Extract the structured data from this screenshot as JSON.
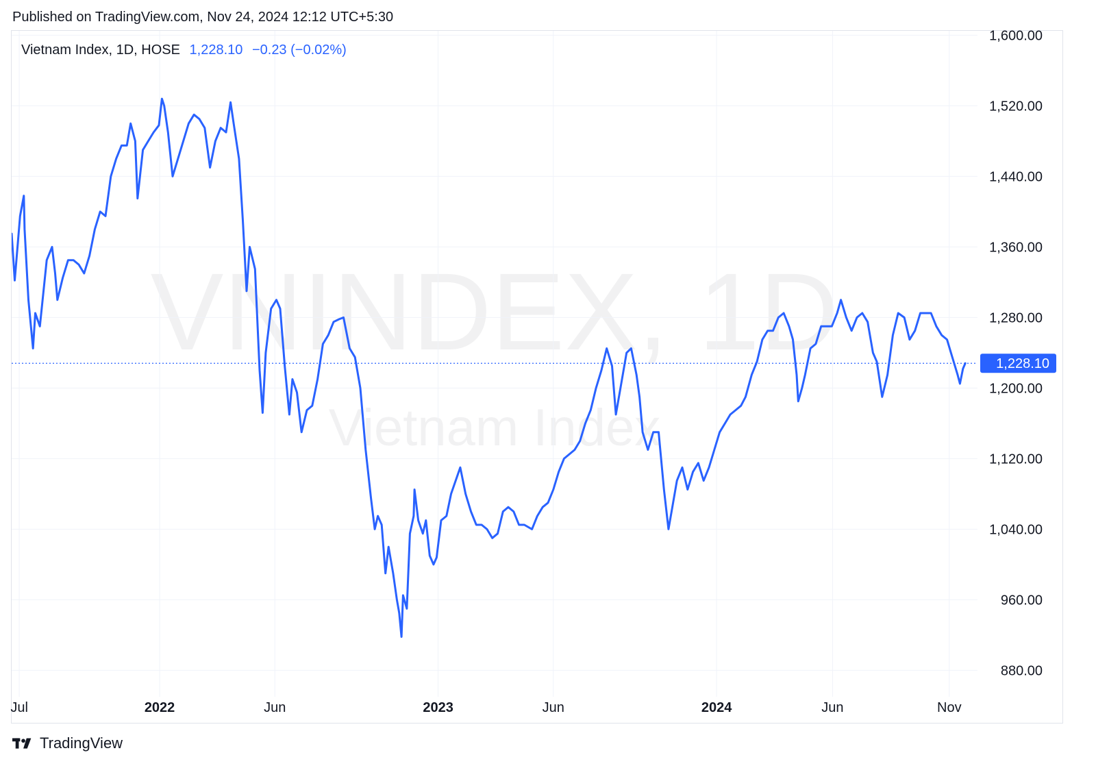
{
  "header": {
    "published_text": "Published on TradingView.com, Nov 24, 2024 12:12 UTC+5:30"
  },
  "legend": {
    "symbol_text": "Vietnam Index, 1D, HOSE",
    "last_value": "1,228.10",
    "change": "−0.23 (−0.02%)",
    "color": "#2962ff"
  },
  "watermark": {
    "line1": "VNINDEX, 1D",
    "line2": "Vietnam Index"
  },
  "footer": {
    "brand": "TradingView",
    "logo_icon": "tradingview-logo-icon"
  },
  "chart_data": {
    "type": "line",
    "series": [
      {
        "color": "#2962ff",
        "points": [
          [
            "2021-06-21",
            1375
          ],
          [
            "2021-06-25",
            1322
          ],
          [
            "2021-07-02",
            1395
          ],
          [
            "2021-07-07",
            1418
          ],
          [
            "2021-07-08",
            1380
          ],
          [
            "2021-07-13",
            1300
          ],
          [
            "2021-07-19",
            1245
          ],
          [
            "2021-07-22",
            1285
          ],
          [
            "2021-07-28",
            1270
          ],
          [
            "2021-08-06",
            1345
          ],
          [
            "2021-08-13",
            1360
          ],
          [
            "2021-08-17",
            1330
          ],
          [
            "2021-08-20",
            1300
          ],
          [
            "2021-08-27",
            1325
          ],
          [
            "2021-09-03",
            1345
          ],
          [
            "2021-09-10",
            1345
          ],
          [
            "2021-09-17",
            1340
          ],
          [
            "2021-09-24",
            1330
          ],
          [
            "2021-10-01",
            1350
          ],
          [
            "2021-10-08",
            1380
          ],
          [
            "2021-10-15",
            1400
          ],
          [
            "2021-10-22",
            1395
          ],
          [
            "2021-10-29",
            1440
          ],
          [
            "2021-11-05",
            1460
          ],
          [
            "2021-11-12",
            1475
          ],
          [
            "2021-11-19",
            1475
          ],
          [
            "2021-11-24",
            1500
          ],
          [
            "2021-11-30",
            1480
          ],
          [
            "2021-12-03",
            1415
          ],
          [
            "2021-12-10",
            1470
          ],
          [
            "2021-12-17",
            1480
          ],
          [
            "2021-12-24",
            1490
          ],
          [
            "2021-12-31",
            1498
          ],
          [
            "2022-01-04",
            1528
          ],
          [
            "2022-01-07",
            1520
          ],
          [
            "2022-01-12",
            1490
          ],
          [
            "2022-01-18",
            1440
          ],
          [
            "2022-01-25",
            1460
          ],
          [
            "2022-02-08",
            1500
          ],
          [
            "2022-02-15",
            1510
          ],
          [
            "2022-02-22",
            1505
          ],
          [
            "2022-03-01",
            1495
          ],
          [
            "2022-03-08",
            1450
          ],
          [
            "2022-03-15",
            1480
          ],
          [
            "2022-03-22",
            1495
          ],
          [
            "2022-03-29",
            1490
          ],
          [
            "2022-04-04",
            1524
          ],
          [
            "2022-04-08",
            1500
          ],
          [
            "2022-04-15",
            1460
          ],
          [
            "2022-04-20",
            1390
          ],
          [
            "2022-04-25",
            1310
          ],
          [
            "2022-04-29",
            1360
          ],
          [
            "2022-05-06",
            1335
          ],
          [
            "2022-05-12",
            1220
          ],
          [
            "2022-05-16",
            1172
          ],
          [
            "2022-05-20",
            1240
          ],
          [
            "2022-05-27",
            1290
          ],
          [
            "2022-06-03",
            1300
          ],
          [
            "2022-06-08",
            1290
          ],
          [
            "2022-06-14",
            1225
          ],
          [
            "2022-06-20",
            1170
          ],
          [
            "2022-06-24",
            1210
          ],
          [
            "2022-06-30",
            1195
          ],
          [
            "2022-07-06",
            1150
          ],
          [
            "2022-07-13",
            1175
          ],
          [
            "2022-07-20",
            1180
          ],
          [
            "2022-07-27",
            1210
          ],
          [
            "2022-08-03",
            1250
          ],
          [
            "2022-08-10",
            1260
          ],
          [
            "2022-08-17",
            1275
          ],
          [
            "2022-08-24",
            1278
          ],
          [
            "2022-08-30",
            1280
          ],
          [
            "2022-09-07",
            1245
          ],
          [
            "2022-09-14",
            1235
          ],
          [
            "2022-09-21",
            1200
          ],
          [
            "2022-09-28",
            1130
          ],
          [
            "2022-10-05",
            1075
          ],
          [
            "2022-10-10",
            1040
          ],
          [
            "2022-10-14",
            1055
          ],
          [
            "2022-10-19",
            1045
          ],
          [
            "2022-10-24",
            990
          ],
          [
            "2022-10-28",
            1020
          ],
          [
            "2022-11-03",
            990
          ],
          [
            "2022-11-08",
            960
          ],
          [
            "2022-11-11",
            945
          ],
          [
            "2022-11-14",
            918
          ],
          [
            "2022-11-16",
            965
          ],
          [
            "2022-11-21",
            950
          ],
          [
            "2022-11-25",
            1035
          ],
          [
            "2022-11-30",
            1055
          ],
          [
            "2022-12-01",
            1085
          ],
          [
            "2022-12-06",
            1050
          ],
          [
            "2022-12-12",
            1035
          ],
          [
            "2022-12-16",
            1050
          ],
          [
            "2022-12-21",
            1010
          ],
          [
            "2022-12-26",
            1000
          ],
          [
            "2022-12-30",
            1008
          ],
          [
            "2023-01-05",
            1050
          ],
          [
            "2023-01-12",
            1055
          ],
          [
            "2023-01-18",
            1080
          ],
          [
            "2023-01-30",
            1110
          ],
          [
            "2023-02-06",
            1080
          ],
          [
            "2023-02-13",
            1060
          ],
          [
            "2023-02-20",
            1045
          ],
          [
            "2023-02-27",
            1045
          ],
          [
            "2023-03-06",
            1040
          ],
          [
            "2023-03-13",
            1030
          ],
          [
            "2023-03-20",
            1035
          ],
          [
            "2023-03-27",
            1060
          ],
          [
            "2023-04-03",
            1065
          ],
          [
            "2023-04-10",
            1060
          ],
          [
            "2023-04-17",
            1045
          ],
          [
            "2023-04-24",
            1045
          ],
          [
            "2023-05-04",
            1040
          ],
          [
            "2023-05-11",
            1055
          ],
          [
            "2023-05-18",
            1065
          ],
          [
            "2023-05-25",
            1070
          ],
          [
            "2023-06-01",
            1085
          ],
          [
            "2023-06-08",
            1105
          ],
          [
            "2023-06-15",
            1120
          ],
          [
            "2023-06-22",
            1125
          ],
          [
            "2023-06-29",
            1130
          ],
          [
            "2023-07-06",
            1140
          ],
          [
            "2023-07-13",
            1160
          ],
          [
            "2023-07-20",
            1175
          ],
          [
            "2023-07-27",
            1200
          ],
          [
            "2023-08-03",
            1220
          ],
          [
            "2023-08-10",
            1245
          ],
          [
            "2023-08-17",
            1225
          ],
          [
            "2023-08-22",
            1170
          ],
          [
            "2023-08-28",
            1200
          ],
          [
            "2023-09-05",
            1240
          ],
          [
            "2023-09-11",
            1245
          ],
          [
            "2023-09-18",
            1215
          ],
          [
            "2023-09-22",
            1190
          ],
          [
            "2023-09-26",
            1150
          ],
          [
            "2023-10-03",
            1130
          ],
          [
            "2023-10-10",
            1150
          ],
          [
            "2023-10-17",
            1150
          ],
          [
            "2023-10-24",
            1085
          ],
          [
            "2023-10-30",
            1040
          ],
          [
            "2023-11-03",
            1060
          ],
          [
            "2023-11-10",
            1095
          ],
          [
            "2023-11-17",
            1110
          ],
          [
            "2023-11-24",
            1085
          ],
          [
            "2023-12-01",
            1105
          ],
          [
            "2023-12-08",
            1115
          ],
          [
            "2023-12-15",
            1095
          ],
          [
            "2023-12-22",
            1110
          ],
          [
            "2023-12-29",
            1130
          ],
          [
            "2024-01-05",
            1150
          ],
          [
            "2024-01-12",
            1160
          ],
          [
            "2024-01-19",
            1170
          ],
          [
            "2024-01-26",
            1175
          ],
          [
            "2024-02-02",
            1180
          ],
          [
            "2024-02-08",
            1190
          ],
          [
            "2024-02-16",
            1215
          ],
          [
            "2024-02-23",
            1230
          ],
          [
            "2024-03-01",
            1255
          ],
          [
            "2024-03-08",
            1265
          ],
          [
            "2024-03-15",
            1265
          ],
          [
            "2024-03-22",
            1280
          ],
          [
            "2024-03-29",
            1285
          ],
          [
            "2024-04-05",
            1270
          ],
          [
            "2024-04-10",
            1255
          ],
          [
            "2024-04-15",
            1215
          ],
          [
            "2024-04-17",
            1185
          ],
          [
            "2024-04-22",
            1200
          ],
          [
            "2024-04-26",
            1215
          ],
          [
            "2024-05-03",
            1245
          ],
          [
            "2024-05-10",
            1250
          ],
          [
            "2024-05-17",
            1270
          ],
          [
            "2024-05-24",
            1270
          ],
          [
            "2024-05-31",
            1270
          ],
          [
            "2024-06-07",
            1285
          ],
          [
            "2024-06-12",
            1300
          ],
          [
            "2024-06-19",
            1280
          ],
          [
            "2024-06-26",
            1265
          ],
          [
            "2024-07-03",
            1280
          ],
          [
            "2024-07-10",
            1285
          ],
          [
            "2024-07-17",
            1275
          ],
          [
            "2024-07-24",
            1240
          ],
          [
            "2024-07-29",
            1230
          ],
          [
            "2024-08-05",
            1190
          ],
          [
            "2024-08-12",
            1215
          ],
          [
            "2024-08-19",
            1260
          ],
          [
            "2024-08-26",
            1285
          ],
          [
            "2024-09-03",
            1280
          ],
          [
            "2024-09-10",
            1255
          ],
          [
            "2024-09-17",
            1265
          ],
          [
            "2024-09-24",
            1285
          ],
          [
            "2024-10-01",
            1285
          ],
          [
            "2024-10-08",
            1285
          ],
          [
            "2024-10-15",
            1270
          ],
          [
            "2024-10-22",
            1260
          ],
          [
            "2024-10-29",
            1255
          ],
          [
            "2024-11-05",
            1235
          ],
          [
            "2024-11-12",
            1215
          ],
          [
            "2024-11-15",
            1205
          ],
          [
            "2024-11-19",
            1222
          ],
          [
            "2024-11-22",
            1228.1
          ]
        ]
      }
    ],
    "x_range": [
      "2021-06-21",
      "2024-12-08"
    ],
    "y_range": [
      850,
      1605
    ],
    "x_ticks": [
      {
        "date": "2021-07-01",
        "label": "Jul",
        "bold": false
      },
      {
        "date": "2022-01-01",
        "label": "2022",
        "bold": true
      },
      {
        "date": "2022-06-01",
        "label": "Jun",
        "bold": false
      },
      {
        "date": "2023-01-01",
        "label": "2023",
        "bold": true
      },
      {
        "date": "2023-06-01",
        "label": "Jun",
        "bold": false
      },
      {
        "date": "2024-01-01",
        "label": "2024",
        "bold": true
      },
      {
        "date": "2024-06-01",
        "label": "Jun",
        "bold": false
      },
      {
        "date": "2024-11-01",
        "label": "Nov",
        "bold": false
      }
    ],
    "y_ticks": [
      {
        "value": 880,
        "label": "880.00"
      },
      {
        "value": 960,
        "label": "960.00"
      },
      {
        "value": 1040,
        "label": "1,040.00"
      },
      {
        "value": 1120,
        "label": "1,120.00"
      },
      {
        "value": 1200,
        "label": "1,200.00"
      },
      {
        "value": 1280,
        "label": "1,280.00"
      },
      {
        "value": 1360,
        "label": "1,360.00"
      },
      {
        "value": 1440,
        "label": "1,440.00"
      },
      {
        "value": 1520,
        "label": "1,520.00"
      },
      {
        "value": 1600,
        "label": "1,600.00"
      }
    ],
    "last_price": {
      "value": 1228.1,
      "label": "1,228.10"
    },
    "grid": true,
    "price_scale_position": "right",
    "legend_position": "top-left"
  }
}
